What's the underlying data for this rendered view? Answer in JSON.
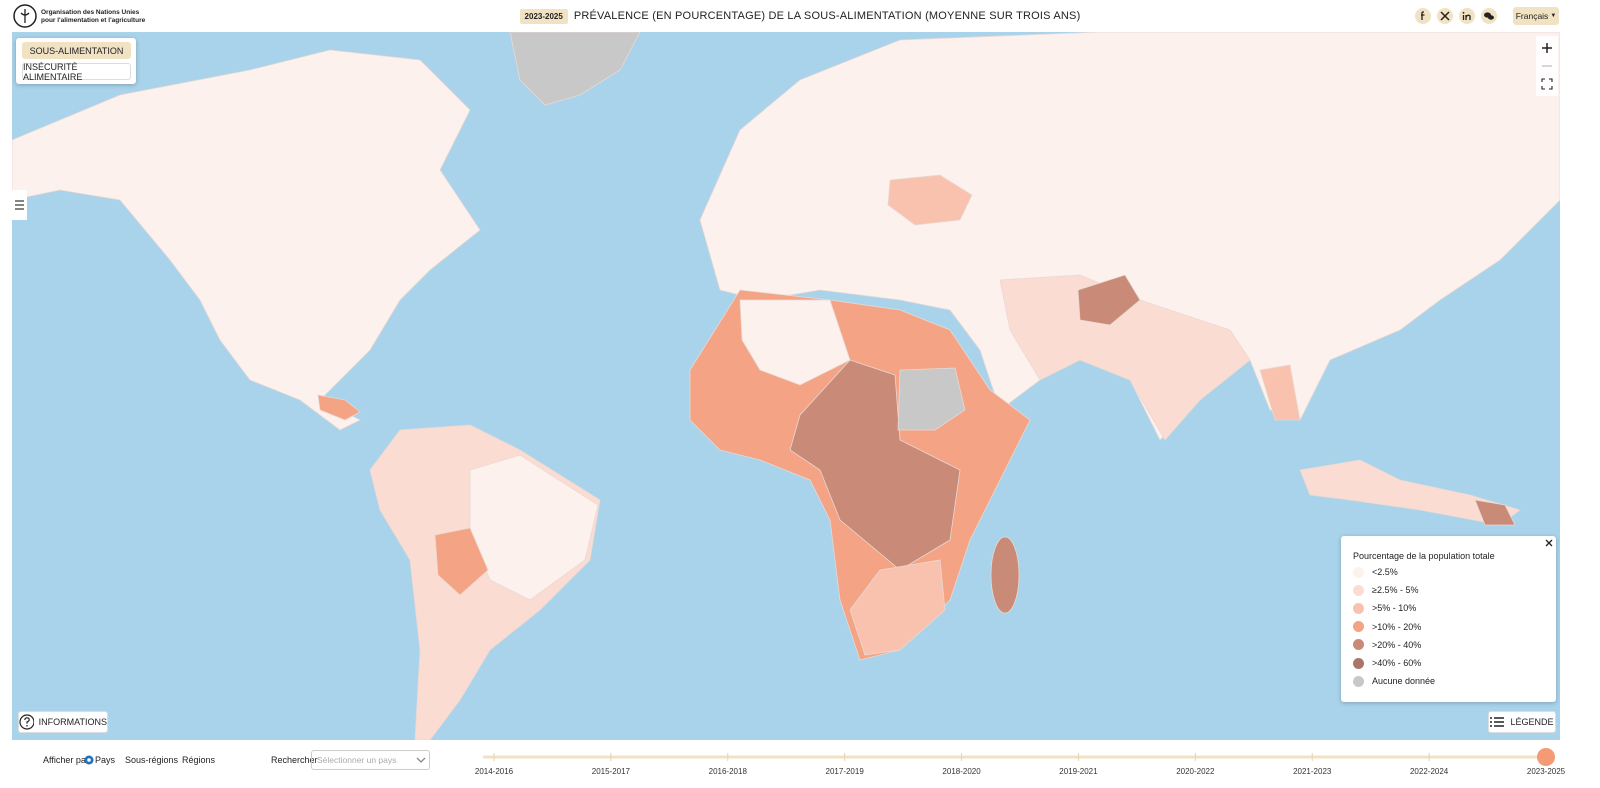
{
  "header": {
    "org_name_line1": "Organisation des Nations Unies",
    "org_name_line2": "pour l'alimentation et l'agriculture",
    "period": "2023-2025",
    "title": "PRÉVALENCE (EN POURCENTAGE) DE LA SOUS-ALIMENTATION (MOYENNE SUR TROIS ANS)",
    "language": "Français"
  },
  "indicator_menu": [
    "SOUS-ALIMENTATION",
    "INSÉCURITÉ ALIMENTAIRE"
  ],
  "legend": {
    "title": "Pourcentage de la population totale",
    "items": [
      {
        "label": "<2.5%",
        "color": "#fdf1ed"
      },
      {
        "label": "≥2.5% - 5%",
        "color": "#fbdcd2"
      },
      {
        "label": ">5% - 10%",
        "color": "#f9c2ae"
      },
      {
        "label": ">10% - 20%",
        "color": "#f4a384"
      },
      {
        "label": ">20% - 40%",
        "color": "#c98b78"
      },
      {
        "label": ">40% - 60%",
        "color": "#a9766a"
      },
      {
        "label": "Aucune donnée",
        "color": "#c8c8c8"
      }
    ],
    "button": "LÉGENDE"
  },
  "info_button": "INFORMATIONS",
  "controls": {
    "display_by": "Afficher par",
    "options": [
      "Pays",
      "Sous-régions",
      "Régions"
    ],
    "search_label": "Rechercher",
    "search_placeholder": "Sélectionner un pays"
  },
  "timeline": {
    "periods": [
      "2014-2016",
      "2015-2017",
      "2016-2018",
      "2017-2019",
      "2018-2020",
      "2019-2021",
      "2020-2022",
      "2021-2023",
      "2022-2024",
      "2023-2025"
    ]
  }
}
